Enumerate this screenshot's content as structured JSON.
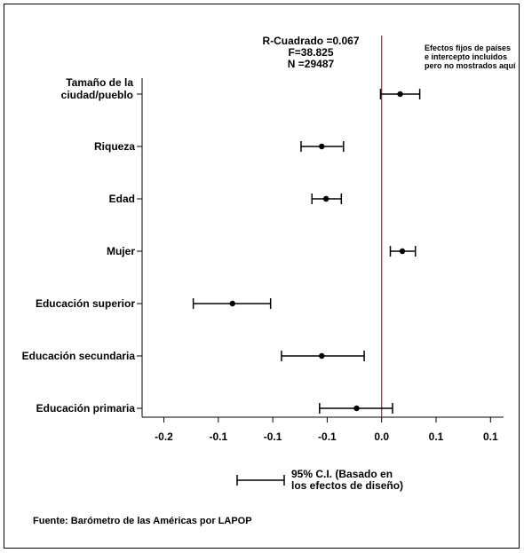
{
  "chart_data": {
    "type": "scatter",
    "title": "",
    "xlabel": "",
    "ylabel": "",
    "xlim": [
      -0.22,
      0.112
    ],
    "x_ticks": [
      {
        "value": -0.2,
        "label": "-0.2"
      },
      {
        "value": -0.15,
        "label": "-0.1"
      },
      {
        "value": -0.1,
        "label": "-0.1"
      },
      {
        "value": -0.05,
        "label": "-0.1"
      },
      {
        "value": 0.0,
        "label": "0.0"
      },
      {
        "value": 0.05,
        "label": "0.1"
      },
      {
        "value": 0.1,
        "label": "0.1"
      }
    ],
    "reference_line": {
      "x": 0.0,
      "color": "#b22222"
    },
    "points": [
      {
        "label": "Tamaño de la ciudad/pueblo",
        "lines": [
          "Tamaño de la",
          "ciudad/pueblo"
        ],
        "estimate": 0.017,
        "ci_low": -0.001,
        "ci_high": 0.035
      },
      {
        "label": "Riqueza",
        "lines": [
          "Riqueza"
        ],
        "estimate": -0.055,
        "ci_low": -0.074,
        "ci_high": -0.035
      },
      {
        "label": "Edad",
        "lines": [
          "Edad"
        ],
        "estimate": -0.051,
        "ci_low": -0.064,
        "ci_high": -0.037
      },
      {
        "label": "Mujer",
        "lines": [
          "Mujer"
        ],
        "estimate": 0.019,
        "ci_low": 0.008,
        "ci_high": 0.031
      },
      {
        "label": "Educación superior",
        "lines": [
          "Educación superior"
        ],
        "estimate": -0.137,
        "ci_low": -0.173,
        "ci_high": -0.102
      },
      {
        "label": "Educación secundaria",
        "lines": [
          "Educación secundaria"
        ],
        "estimate": -0.055,
        "ci_low": -0.092,
        "ci_high": -0.016
      },
      {
        "label": "Educación primaria",
        "lines": [
          "Educación primaria"
        ],
        "estimate": -0.023,
        "ci_low": -0.057,
        "ci_high": 0.01
      }
    ],
    "stats": [
      "R-Cuadrado =0.067",
      "F=38.825",
      "N =29487"
    ],
    "note": [
      "Efectos fijos de países",
      "e intercepto incluidos",
      "pero no mostrados aquí"
    ],
    "legend": {
      "lines": [
        "95% C.I. (Basado en",
        "los efectos de diseño)"
      ]
    },
    "source": "Fuente: Barómetro de las Américas por LAPOP",
    "grid": false,
    "marker_color": "#000000"
  }
}
